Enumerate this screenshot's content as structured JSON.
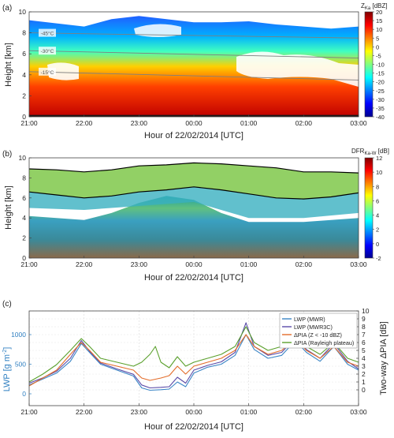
{
  "chart_data": [
    {
      "panel_label": "(a)",
      "type": "heatmap",
      "quantity": "radar reflectivity",
      "colorbar_label": "Z",
      "colorbar_label_sub": "Ka",
      "colorbar_unit": "[dBZ]",
      "colorbar_ticks": [
        20,
        15,
        10,
        5,
        0,
        -5,
        -10,
        -15,
        -20,
        -25,
        -30,
        -35,
        -40
      ],
      "clim": [
        -40,
        20
      ],
      "ylabel": "Height [km]",
      "xlabel": "Hour of 22/02/2014 [UTC]",
      "x_ticks": [
        "21:00",
        "22:00",
        "23:00",
        "00:00",
        "01:00",
        "02:00",
        "03:00"
      ],
      "y_ticks": [
        0,
        2,
        4,
        6,
        8,
        10
      ],
      "xlim_hours": [
        21,
        27
      ],
      "ylim": [
        0,
        10
      ],
      "isotherms": [
        {
          "label": "-45°C",
          "height_start": 8.0,
          "height_end": 7.5
        },
        {
          "label": "-30°C",
          "height_start": 6.3,
          "height_end": 5.6
        },
        {
          "label": "-15°C",
          "height_start": 4.3,
          "height_end": 3.5
        }
      ],
      "cloud_top_km": [
        [
          21.0,
          9.2
        ],
        [
          21.5,
          8.9
        ],
        [
          22.0,
          8.6
        ],
        [
          22.5,
          9.3
        ],
        [
          23.0,
          9.6
        ],
        [
          23.5,
          9.3
        ],
        [
          24.0,
          9.0
        ],
        [
          24.5,
          9.0
        ],
        [
          25.0,
          9.1
        ],
        [
          25.5,
          8.8
        ],
        [
          26.0,
          8.6
        ],
        [
          26.5,
          8.4
        ],
        [
          27.0,
          8.6
        ]
      ]
    },
    {
      "panel_label": "(b)",
      "type": "heatmap",
      "quantity": "dual-frequency ratio",
      "colorbar_label": "DFR",
      "colorbar_label_sub": "Ka-W",
      "colorbar_unit": "[dB]",
      "colorbar_ticks": [
        12,
        10,
        8,
        6,
        4,
        2,
        0,
        -2
      ],
      "clim": [
        -2,
        12
      ],
      "ylabel": "Height [km]",
      "xlabel": "Hour of 22/02/2014 [UTC]",
      "x_ticks": [
        "21:00",
        "22:00",
        "23:00",
        "00:00",
        "01:00",
        "02:00",
        "03:00"
      ],
      "y_ticks": [
        0,
        2,
        4,
        6,
        8,
        10
      ],
      "xlim_hours": [
        21,
        27
      ],
      "ylim": [
        0,
        10
      ],
      "upper_contour_km": [
        [
          21.0,
          8.9
        ],
        [
          21.5,
          8.8
        ],
        [
          22.0,
          8.6
        ],
        [
          22.5,
          8.8
        ],
        [
          23.0,
          9.2
        ],
        [
          23.5,
          9.3
        ],
        [
          24.0,
          9.5
        ],
        [
          24.5,
          9.4
        ],
        [
          25.0,
          9.2
        ],
        [
          25.5,
          9.0
        ],
        [
          26.0,
          8.6
        ],
        [
          26.5,
          8.6
        ],
        [
          27.0,
          8.5
        ]
      ],
      "lower_contour_km": [
        [
          21.0,
          6.6
        ],
        [
          21.5,
          6.3
        ],
        [
          22.0,
          6.0
        ],
        [
          22.5,
          6.2
        ],
        [
          23.0,
          6.6
        ],
        [
          23.5,
          6.8
        ],
        [
          24.0,
          7.1
        ],
        [
          24.5,
          6.8
        ],
        [
          25.0,
          6.4
        ],
        [
          25.5,
          6.0
        ],
        [
          26.0,
          5.9
        ],
        [
          26.5,
          6.1
        ],
        [
          27.0,
          6.5
        ]
      ]
    },
    {
      "panel_label": "(c)",
      "type": "line",
      "xlabel": "Hour of 22/02/2014 [UTC]",
      "ylabel_left": "LWP [g m",
      "ylabel_left_sup": "-2",
      "ylabel_left_end": "]",
      "ylabel_right": "Two-way ΔPIA [dB]",
      "x_ticks": [
        "21:00",
        "22:00",
        "23:00",
        "00:00",
        "01:00",
        "02:00",
        "03:00"
      ],
      "y_ticks_left": [
        0,
        500,
        1000
      ],
      "y_ticks_right": [
        0,
        1,
        2,
        3,
        4,
        5,
        6,
        7,
        8,
        9,
        10
      ],
      "xlim_hours": [
        21,
        27
      ],
      "ylim_left": [
        -200,
        1400
      ],
      "ylim_right": [
        -2,
        10
      ],
      "legend_position": "top-right",
      "series": [
        {
          "name": "LWP (MWR)",
          "axis": "left",
          "color": "#3b86c6",
          "points": [
            [
              21.0,
              150
            ],
            [
              21.25,
              250
            ],
            [
              21.5,
              350
            ],
            [
              21.75,
              550
            ],
            [
              21.95,
              850
            ],
            [
              22.1,
              700
            ],
            [
              22.3,
              500
            ],
            [
              22.6,
              400
            ],
            [
              22.9,
              300
            ],
            [
              23.05,
              100
            ],
            [
              23.2,
              60
            ],
            [
              23.4,
              70
            ],
            [
              23.55,
              80
            ],
            [
              23.7,
              200
            ],
            [
              23.85,
              120
            ],
            [
              24.0,
              350
            ],
            [
              24.25,
              450
            ],
            [
              24.5,
              500
            ],
            [
              24.75,
              650
            ],
            [
              24.95,
              1000
            ],
            [
              25.1,
              750
            ],
            [
              25.35,
              600
            ],
            [
              25.6,
              650
            ],
            [
              25.85,
              900
            ],
            [
              26.05,
              700
            ],
            [
              26.3,
              550
            ],
            [
              26.55,
              800
            ],
            [
              26.8,
              500
            ],
            [
              27.0,
              400
            ]
          ]
        },
        {
          "name": "LWP (MWR3C)",
          "axis": "left",
          "color": "#5a4aa8",
          "points": [
            [
              21.0,
              180
            ],
            [
              21.25,
              270
            ],
            [
              21.5,
              380
            ],
            [
              21.75,
              600
            ],
            [
              21.95,
              900
            ],
            [
              22.1,
              720
            ],
            [
              22.3,
              520
            ],
            [
              22.6,
              420
            ],
            [
              22.9,
              330
            ],
            [
              23.05,
              150
            ],
            [
              23.2,
              100
            ],
            [
              23.4,
              110
            ],
            [
              23.55,
              120
            ],
            [
              23.7,
              280
            ],
            [
              23.85,
              180
            ],
            [
              24.0,
              400
            ],
            [
              24.25,
              480
            ],
            [
              24.5,
              540
            ],
            [
              24.75,
              700
            ],
            [
              24.95,
              1200
            ],
            [
              25.1,
              800
            ],
            [
              25.35,
              650
            ],
            [
              25.6,
              700
            ],
            [
              25.85,
              950
            ],
            [
              26.05,
              750
            ],
            [
              26.3,
              600
            ],
            [
              26.55,
              850
            ],
            [
              26.8,
              550
            ],
            [
              27.0,
              420
            ]
          ]
        },
        {
          "name": "ΔPIA (Z < -10 dBZ)",
          "axis": "right",
          "color": "#e36c2a",
          "points": [
            [
              21.0,
              0.5
            ],
            [
              21.25,
              1.5
            ],
            [
              21.5,
              2.5
            ],
            [
              21.75,
              4.5
            ],
            [
              21.95,
              6.0
            ],
            [
              22.1,
              5.0
            ],
            [
              22.3,
              3.5
            ],
            [
              22.6,
              3.0
            ],
            [
              22.9,
              2.5
            ],
            [
              23.05,
              1.5
            ],
            [
              23.2,
              1.2
            ],
            [
              23.4,
              1.5
            ],
            [
              23.55,
              1.8
            ],
            [
              23.7,
              3.0
            ],
            [
              23.85,
              2.0
            ],
            [
              24.0,
              3.0
            ],
            [
              24.25,
              3.5
            ],
            [
              24.5,
              4.0
            ],
            [
              24.75,
              5.0
            ],
            [
              24.95,
              7.0
            ],
            [
              25.1,
              5.5
            ],
            [
              25.35,
              4.5
            ],
            [
              25.6,
              5.0
            ],
            [
              25.85,
              6.5
            ],
            [
              26.05,
              5.0
            ],
            [
              26.3,
              4.0
            ],
            [
              26.55,
              5.5
            ],
            [
              26.8,
              3.5
            ],
            [
              27.0,
              3.0
            ]
          ]
        },
        {
          "name": "ΔPIA (Rayleigh plateau)",
          "axis": "right",
          "color": "#5aa02c",
          "points": [
            [
              21.0,
              1.0
            ],
            [
              21.25,
              2.0
            ],
            [
              21.5,
              3.2
            ],
            [
              21.75,
              5.0
            ],
            [
              21.95,
              6.5
            ],
            [
              22.1,
              5.5
            ],
            [
              22.3,
              4.0
            ],
            [
              22.6,
              3.5
            ],
            [
              22.9,
              3.0
            ],
            [
              23.05,
              3.5
            ],
            [
              23.2,
              4.5
            ],
            [
              23.3,
              5.5
            ],
            [
              23.4,
              3.5
            ],
            [
              23.55,
              2.8
            ],
            [
              23.7,
              4.2
            ],
            [
              23.85,
              3.0
            ],
            [
              24.0,
              3.5
            ],
            [
              24.25,
              4.0
            ],
            [
              24.5,
              4.5
            ],
            [
              24.75,
              5.5
            ],
            [
              24.95,
              8.0
            ],
            [
              25.1,
              6.0
            ],
            [
              25.35,
              5.0
            ],
            [
              25.6,
              5.5
            ],
            [
              25.85,
              7.0
            ],
            [
              26.05,
              5.5
            ],
            [
              26.3,
              4.5
            ],
            [
              26.55,
              6.0
            ],
            [
              26.8,
              4.0
            ],
            [
              27.0,
              3.5
            ]
          ]
        }
      ]
    }
  ],
  "colors": {
    "jet": [
      "#00008f",
      "#0000ff",
      "#0080ff",
      "#00ffff",
      "#80ff80",
      "#ffff00",
      "#ff8000",
      "#ff0000",
      "#800000"
    ],
    "isotherm_line": "#7f7f7f",
    "contour": "#000000"
  }
}
